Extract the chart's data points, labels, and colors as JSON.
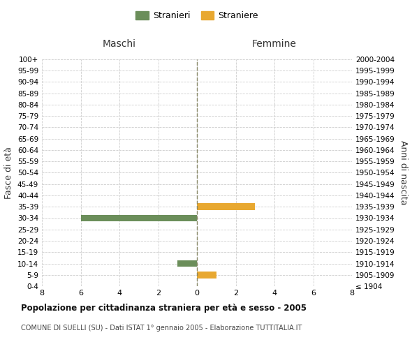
{
  "age_groups": [
    "100+",
    "95-99",
    "90-94",
    "85-89",
    "80-84",
    "75-79",
    "70-74",
    "65-69",
    "60-64",
    "55-59",
    "50-54",
    "45-49",
    "40-44",
    "35-39",
    "30-34",
    "25-29",
    "20-24",
    "15-19",
    "10-14",
    "5-9",
    "0-4"
  ],
  "birth_years": [
    "≤ 1904",
    "1905-1909",
    "1910-1914",
    "1915-1919",
    "1920-1924",
    "1925-1929",
    "1930-1934",
    "1935-1939",
    "1940-1944",
    "1945-1949",
    "1950-1954",
    "1955-1959",
    "1960-1964",
    "1965-1969",
    "1970-1974",
    "1975-1979",
    "1980-1984",
    "1985-1989",
    "1990-1994",
    "1995-1999",
    "2000-2004"
  ],
  "males": [
    0,
    0,
    0,
    0,
    0,
    0,
    0,
    0,
    0,
    0,
    0,
    0,
    0,
    0,
    6,
    0,
    0,
    0,
    1,
    0,
    0
  ],
  "females": [
    0,
    0,
    0,
    0,
    0,
    0,
    0,
    0,
    0,
    0,
    0,
    0,
    0,
    3,
    0,
    0,
    0,
    0,
    0,
    1,
    0
  ],
  "male_color": "#6B8E5A",
  "female_color": "#E8A830",
  "title": "Popolazione per cittadinanza straniera per età e sesso - 2005",
  "subtitle": "COMUNE DI SUELLI (SU) - Dati ISTAT 1° gennaio 2005 - Elaborazione TUTTITALIA.IT",
  "xlabel_left": "Maschi",
  "xlabel_right": "Femmine",
  "ylabel_left": "Fasce di età",
  "ylabel_right": "Anni di nascita",
  "legend_male": "Stranieri",
  "legend_female": "Straniere",
  "xlim": 8,
  "bg_color": "#ffffff",
  "grid_color": "#cccccc",
  "center_line_color": "#888866"
}
